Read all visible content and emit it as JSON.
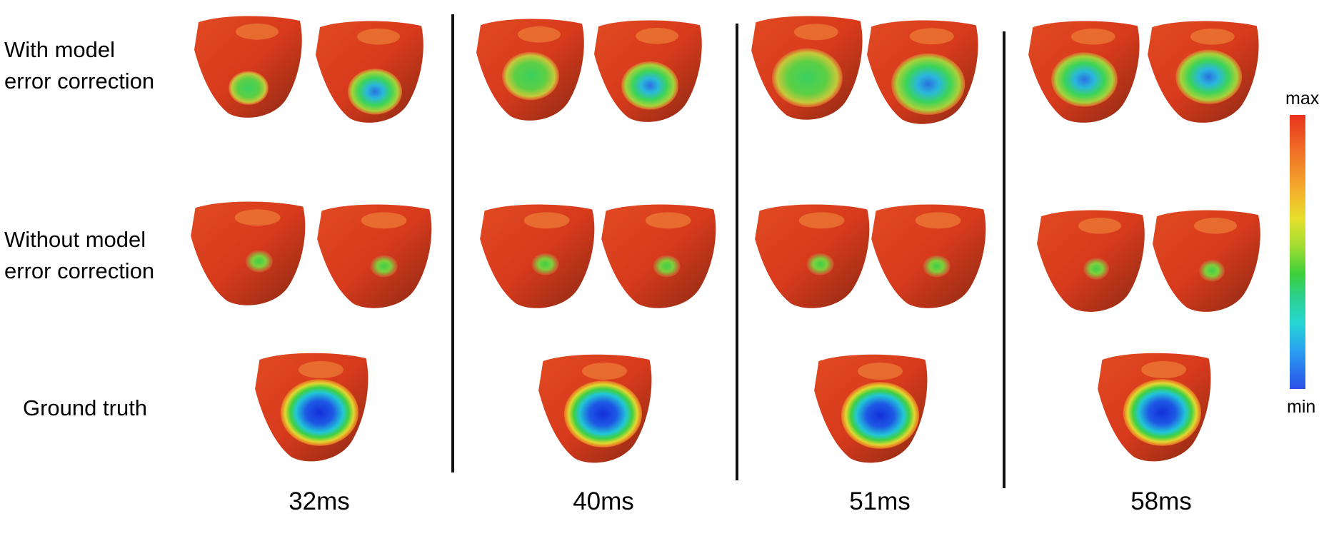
{
  "row_labels": {
    "with_correction": "With model\nerror correction",
    "without_correction": "Without model\nerror correction",
    "ground_truth": "Ground truth"
  },
  "time_labels": [
    "32ms",
    "40ms",
    "51ms",
    "58ms"
  ],
  "colorbar": {
    "max_label": "max",
    "min_label": "min",
    "colors": [
      "#e8321e",
      "#f3b02c",
      "#e6e02c",
      "#3ccf3a",
      "#25d6d4",
      "#2a4fe8"
    ]
  }
}
